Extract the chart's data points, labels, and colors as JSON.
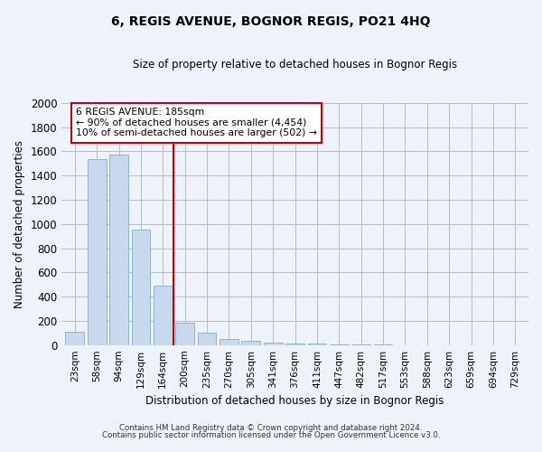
{
  "title": "6, REGIS AVENUE, BOGNOR REGIS, PO21 4HQ",
  "subtitle": "Size of property relative to detached houses in Bognor Regis",
  "xlabel": "Distribution of detached houses by size in Bognor Regis",
  "ylabel": "Number of detached properties",
  "footnote1": "Contains HM Land Registry data © Crown copyright and database right 2024.",
  "footnote2": "Contains public sector information licensed under the Open Government Licence v3.0.",
  "bar_labels": [
    "23sqm",
    "58sqm",
    "94sqm",
    "129sqm",
    "164sqm",
    "200sqm",
    "235sqm",
    "270sqm",
    "305sqm",
    "341sqm",
    "376sqm",
    "411sqm",
    "447sqm",
    "482sqm",
    "517sqm",
    "553sqm",
    "588sqm",
    "623sqm",
    "659sqm",
    "694sqm",
    "729sqm"
  ],
  "bar_values": [
    110,
    1535,
    1570,
    950,
    490,
    185,
    100,
    50,
    35,
    22,
    15,
    10,
    5,
    3,
    2,
    1,
    1,
    0,
    0,
    0,
    0
  ],
  "bar_color": "#c8d9ee",
  "bar_edge_color": "#7aafd4",
  "ylim": [
    0,
    2000
  ],
  "yticks": [
    0,
    200,
    400,
    600,
    800,
    1000,
    1200,
    1400,
    1600,
    1800,
    2000
  ],
  "vline_x": 4.5,
  "vline_color": "#cc0000",
  "annotation_text": "6 REGIS AVENUE: 185sqm\n← 90% of detached houses are smaller (4,454)\n10% of semi-detached houses are larger (502) →",
  "annotation_box_color": "#ffffff",
  "annotation_box_edge_color": "#cc0000",
  "bg_color": "#eef2fb",
  "plot_bg_color": "#eef2fb",
  "grid_color": "#bbbbbb"
}
